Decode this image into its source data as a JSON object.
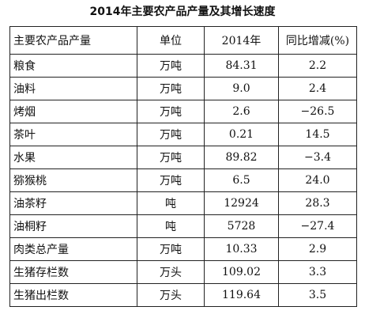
{
  "header": {
    "title": "2014年主要农产品产量及其增长速度"
  },
  "table": {
    "columns": [
      "主要农产品产量",
      "单位",
      "2014年",
      "同比增减(%)"
    ],
    "rows": [
      [
        "粮食",
        "万吨",
        "84.31",
        "2.2"
      ],
      [
        "油料",
        "万吨",
        "9.0",
        "2.4"
      ],
      [
        "烤烟",
        "万吨",
        "2.6",
        "−26.5"
      ],
      [
        "茶叶",
        "万吨",
        "0.21",
        "14.5"
      ],
      [
        "水果",
        "万吨",
        "89.82",
        "−3.4"
      ],
      [
        "猕猴桃",
        "万吨",
        "6.5",
        "24.0"
      ],
      [
        "油茶籽",
        "吨",
        "12924",
        "28.3"
      ],
      [
        "油桐籽",
        "吨",
        "5728",
        "−27.4"
      ],
      [
        "肉类总产量",
        "万吨",
        "10.33",
        "2.9"
      ],
      [
        "生猪存栏数",
        "万头",
        "109.02",
        "3.3"
      ],
      [
        "生猪出栏数",
        "万头",
        "119.64",
        "3.5"
      ]
    ]
  }
}
